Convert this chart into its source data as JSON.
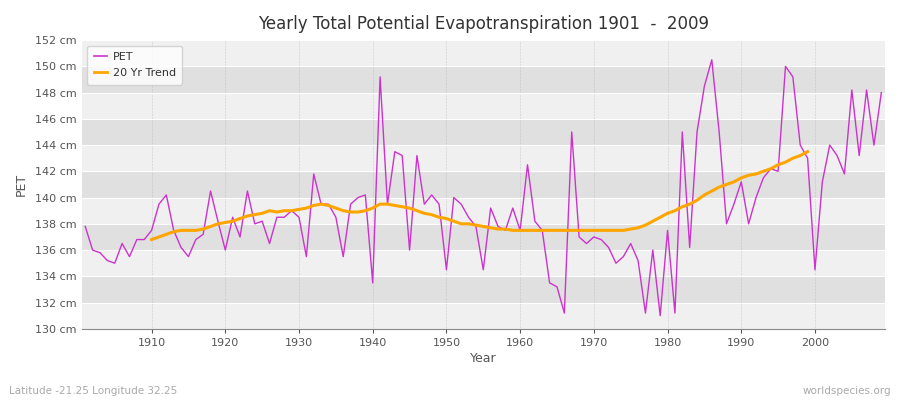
{
  "title": "Yearly Total Potential Evapotranspiration 1901  -  2009",
  "xlabel": "Year",
  "ylabel": "PET",
  "subtitle": "Latitude -21.25 Longitude 32.25",
  "watermark": "worldspecies.org",
  "pet_color": "#cc33cc",
  "trend_color": "#FFA500",
  "figure_bg": "#ffffff",
  "plot_bg": "#e0e0e0",
  "band_color": "#ececec",
  "grid_color": "#ffffff",
  "ylim": [
    130,
    152
  ],
  "ytick_step": 2,
  "start_year": 1901,
  "end_year": 2009,
  "pet_values": [
    137.8,
    136.0,
    135.8,
    135.2,
    135.0,
    136.5,
    135.5,
    136.8,
    136.8,
    137.5,
    139.5,
    140.2,
    137.5,
    136.2,
    135.5,
    136.8,
    137.2,
    140.5,
    138.2,
    136.0,
    138.5,
    137.0,
    140.5,
    138.0,
    138.2,
    136.5,
    138.5,
    138.5,
    139.0,
    138.5,
    135.5,
    141.8,
    139.5,
    139.5,
    138.5,
    135.5,
    139.5,
    140.0,
    140.2,
    133.5,
    149.2,
    139.5,
    143.5,
    143.2,
    136.0,
    143.2,
    139.5,
    140.2,
    139.5,
    134.5,
    140.0,
    139.5,
    138.5,
    137.8,
    134.5,
    139.2,
    137.8,
    137.5,
    139.2,
    137.5,
    142.5,
    138.2,
    137.5,
    133.5,
    133.2,
    131.2,
    145.0,
    137.0,
    136.5,
    137.0,
    136.8,
    136.2,
    135.0,
    135.5,
    136.5,
    135.2,
    131.2,
    136.0,
    131.0,
    137.5,
    131.2,
    145.0,
    136.2,
    145.0,
    148.5,
    150.5,
    145.0,
    138.0,
    139.5,
    141.2,
    138.0,
    140.0,
    141.5,
    142.2,
    142.0,
    150.0,
    149.2,
    144.0,
    143.0,
    134.5,
    141.2,
    144.0,
    143.2,
    141.8,
    148.2,
    143.2,
    148.2,
    144.0,
    148.0
  ],
  "trend_values": [
    null,
    null,
    null,
    null,
    null,
    null,
    null,
    null,
    null,
    136.8,
    137.0,
    137.2,
    137.4,
    137.5,
    137.5,
    137.5,
    137.6,
    137.8,
    138.0,
    138.1,
    138.2,
    138.4,
    138.6,
    138.7,
    138.8,
    139.0,
    138.9,
    139.0,
    139.0,
    139.1,
    139.2,
    139.4,
    139.5,
    139.4,
    139.2,
    139.0,
    138.9,
    138.9,
    139.0,
    139.2,
    139.5,
    139.5,
    139.4,
    139.3,
    139.2,
    139.0,
    138.8,
    138.7,
    138.5,
    138.4,
    138.2,
    138.0,
    138.0,
    137.9,
    137.8,
    137.7,
    137.6,
    137.6,
    137.5,
    137.5,
    137.5,
    137.5,
    137.5,
    137.5,
    137.5,
    137.5,
    137.5,
    137.5,
    137.5,
    137.5,
    137.5,
    137.5,
    137.5,
    137.5,
    137.6,
    137.7,
    137.9,
    138.2,
    138.5,
    138.8,
    139.0,
    139.3,
    139.5,
    139.8,
    140.2,
    140.5,
    140.8,
    141.0,
    141.2,
    141.5,
    141.7,
    141.8,
    142.0,
    142.2,
    142.5,
    142.7,
    143.0,
    143.2,
    143.5,
    null,
    null,
    null,
    null,
    null,
    null,
    null,
    null,
    null,
    null
  ]
}
